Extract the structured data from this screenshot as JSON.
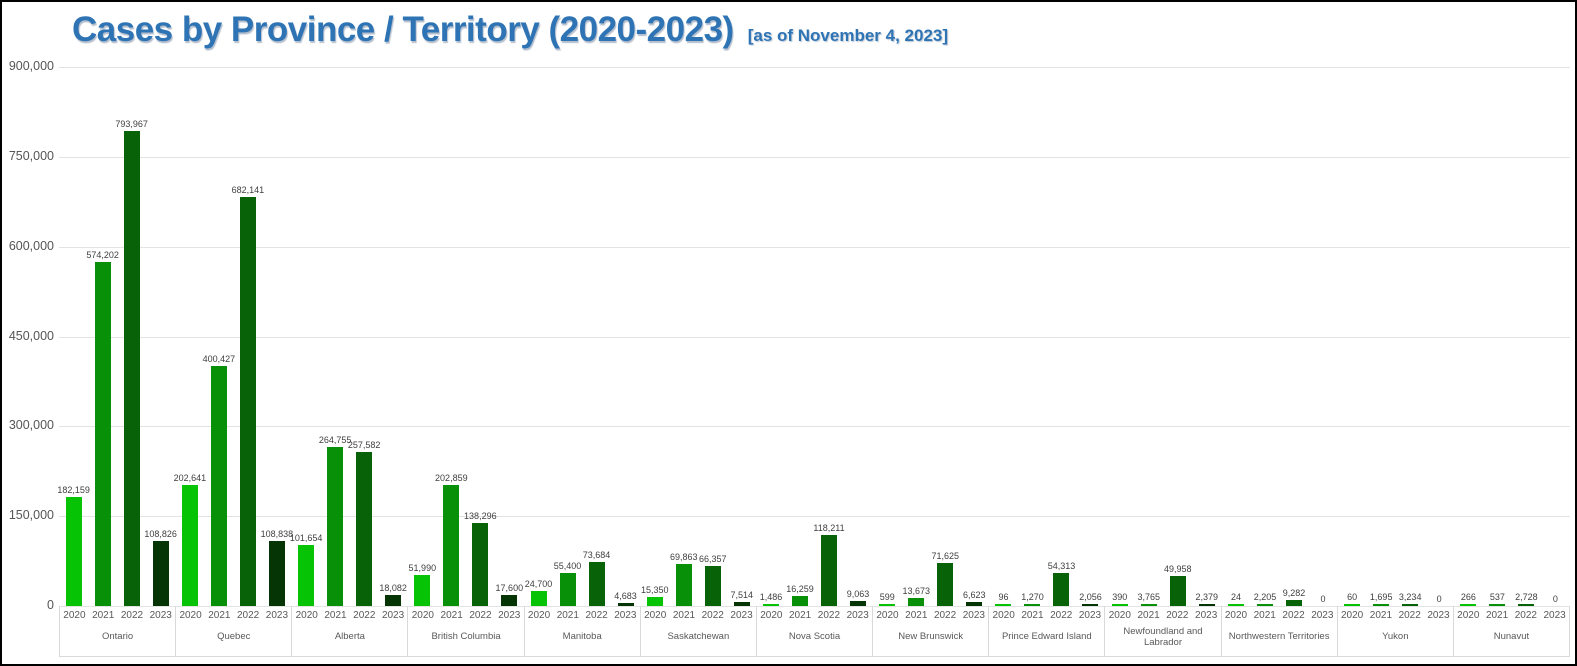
{
  "header": {
    "title": "Cases by Province / Territory (2020-2023)",
    "subtitle": "[as of November 4, 2023]"
  },
  "colors": {
    "title_blue": "#2e74b5",
    "bar_2020": "#06c306",
    "bar_2021": "#089008",
    "bar_2022": "#086308",
    "bar_2023": "#053505",
    "gridline": "#e3e3e3",
    "axis_text": "#595959",
    "value_text": "#404040",
    "divider": "#d9d9d9",
    "border": "#000000"
  },
  "chart_data": {
    "type": "bar",
    "title": "Cases by Province / Territory (2020-2023)",
    "subtitle": "[as of November 4, 2023]",
    "ylabel": "",
    "xlabel": "",
    "ylim": [
      0,
      900000
    ],
    "y_ticks": [
      0,
      150000,
      300000,
      450000,
      600000,
      750000,
      900000
    ],
    "y_tick_labels": [
      "0",
      "150,000",
      "300,000",
      "450,000",
      "600,000",
      "750,000",
      "900,000"
    ],
    "grid": true,
    "legend_position": "none",
    "years": [
      "2020",
      "2021",
      "2022",
      "2023"
    ],
    "year_colors": {
      "2020": "#06c306",
      "2021": "#089008",
      "2022": "#086308",
      "2023": "#053505"
    },
    "categories": [
      "Ontario",
      "Quebec",
      "Alberta",
      "British Columbia",
      "Manitoba",
      "Saskatchewan",
      "Nova Scotia",
      "New Brunswick",
      "Prince Edward Island",
      "Newfoundland and Labrador",
      "Northwestern Territories",
      "Yukon",
      "Nunavut"
    ],
    "series": [
      {
        "name": "2020",
        "values": [
          182159,
          202641,
          101654,
          51990,
          24700,
          15350,
          1486,
          599,
          96,
          390,
          24,
          60,
          266
        ]
      },
      {
        "name": "2021",
        "values": [
          574202,
          400427,
          264755,
          202859,
          55400,
          69863,
          16259,
          13673,
          1270,
          3765,
          2205,
          1695,
          537
        ]
      },
      {
        "name": "2022",
        "values": [
          793967,
          682141,
          257582,
          138296,
          73684,
          66357,
          118211,
          71625,
          54313,
          49958,
          9282,
          3234,
          2728
        ]
      },
      {
        "name": "2023",
        "values": [
          108826,
          108838,
          18082,
          17600,
          4683,
          7514,
          9063,
          6623,
          2056,
          2379,
          0,
          0,
          0
        ]
      }
    ]
  }
}
